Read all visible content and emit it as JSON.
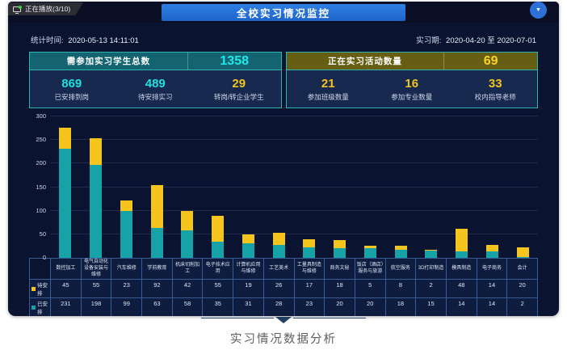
{
  "topbar": {
    "playing_label": "正在播放(3/10)",
    "title": "全校实习情况监控",
    "dropdown_glyph": "▼",
    "icons": [
      "monitor-icon",
      "green-dot",
      "chevron-down-icon"
    ]
  },
  "stats_row": {
    "stat_time_label": "统计时间:",
    "stat_time_value": "2020-05-13 14:11:01",
    "period_label": "实习期:",
    "period_value": "2020-04-20 至 2020-07-01"
  },
  "panels": {
    "left": {
      "header_label": "需参加实习学生总数",
      "header_value": "1358",
      "stats": [
        {
          "value": "869",
          "label": "已安排到岗"
        },
        {
          "value": "489",
          "label": "待安排实习"
        },
        {
          "value": "29",
          "label": "转岗/转企业学生"
        }
      ]
    },
    "right": {
      "header_label": "正在实习活动数量",
      "header_value": "69",
      "stats": [
        {
          "value": "21",
          "label": "参加班级数量"
        },
        {
          "value": "16",
          "label": "参加专业数量"
        },
        {
          "value": "33",
          "label": "校内指导老师"
        }
      ]
    }
  },
  "chart_data": {
    "type": "bar",
    "stacked": true,
    "title": "",
    "xlabel": "",
    "ylabel": "",
    "ylim": [
      0,
      300
    ],
    "yticks": [
      0,
      50,
      100,
      150,
      200,
      250,
      300
    ],
    "grid": true,
    "legend_position": "table-rows",
    "categories": [
      "数控加工",
      "电气自动化设备安装与维修",
      "汽车维修",
      "学前教育",
      "机床切削加工",
      "电子技术应用",
      "计算机应用与维修",
      "工艺美术",
      "工量具制造与维修",
      "商务文秘",
      "饭店（酒店）服务与旅游",
      "航空服务",
      "3D打印制造",
      "模具制造",
      "电子商务",
      "会计"
    ],
    "series": [
      {
        "name": "已安排",
        "color": "#17a2a8",
        "values": [
          231,
          198,
          99,
          63,
          58,
          35,
          31,
          28,
          23,
          20,
          20,
          18,
          15,
          14,
          14,
          2
        ]
      },
      {
        "name": "待安排",
        "color": "#f5c51d",
        "values": [
          45,
          55,
          23,
          92,
          42,
          55,
          19,
          26,
          17,
          18,
          5,
          8,
          2,
          48,
          14,
          20
        ]
      }
    ]
  },
  "table": {
    "rows": [
      {
        "label": "待安排",
        "marker_color": "#f5c51d",
        "values": [
          45,
          55,
          23,
          92,
          42,
          55,
          19,
          26,
          17,
          18,
          5,
          8,
          2,
          48,
          14,
          20
        ]
      },
      {
        "label": "已安排",
        "marker_color": "#17a2a8",
        "values": [
          231,
          198,
          99,
          63,
          58,
          35,
          31,
          28,
          23,
          20,
          20,
          18,
          15,
          14,
          14,
          2
        ]
      }
    ]
  },
  "caption": {
    "text": "实习情况数据分析"
  },
  "colors": {
    "dashboard_bg": "#0a132f",
    "title_bar_blue": "#2575d8",
    "panel_border_teal": "#2fb3ae",
    "left_header_teal": "#136470",
    "right_header_olive": "#665e12",
    "cyan_number": "#1fe0e0",
    "yellow_number": "#f3c41d",
    "bar_done_teal": "#17a2a8",
    "bar_pending_yellow": "#f5c51d"
  }
}
